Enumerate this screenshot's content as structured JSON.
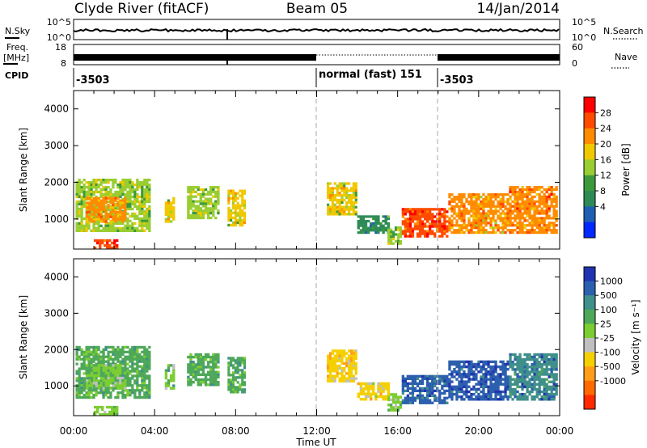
{
  "header": {
    "station": "Clyde River (fitACF)",
    "beam": "Beam 05",
    "date": "14/Jan/2014"
  },
  "top_panels": {
    "nsky_label": "N.Sky",
    "nsky_ticks": [
      "10^5",
      "10^0"
    ],
    "nsearch_ticks": [
      "10^5",
      "10^0"
    ],
    "nsearch_label": "N.Search",
    "freq_label_1": "Freq.",
    "freq_label_2": "[MHz]",
    "freq_ticks": [
      "18",
      "8"
    ],
    "nave_ticks": [
      "60",
      "0"
    ],
    "nave_label": "Nave",
    "cpid_label": "CPID",
    "cpid_segments": [
      "-3503",
      "normal (fast) 151",
      "-3503"
    ]
  },
  "colorbars": {
    "power": {
      "label": "Power [dB]",
      "ticks": [
        "28",
        "24",
        "20",
        "16",
        "12",
        "8",
        "4"
      ],
      "colors": [
        "#ff0000",
        "#ff4a00",
        "#ff8c00",
        "#f0c800",
        "#9acd32",
        "#3c9a3c",
        "#2e8b57",
        "#1e5fb4",
        "#0028ff"
      ]
    },
    "velocity": {
      "label": "Velocity [m s⁻¹]",
      "ticks": [
        "1000",
        "500",
        "100",
        "25",
        "-25",
        "-100",
        "-500",
        "-1000"
      ],
      "colors": [
        "#2033b0",
        "#2c5fae",
        "#3f8f8a",
        "#4fa85a",
        "#7ccd32",
        "#c0c0c0",
        "#f5d000",
        "#ff9d1a",
        "#ff6a00",
        "#ff2a00"
      ]
    }
  },
  "chart_data": [
    {
      "type": "heatmap",
      "title": "",
      "quantity": "Power",
      "xlabel": "",
      "ylabel": "Slant Range [km]",
      "xticks": [
        "00:00",
        "04:00",
        "08:00",
        "12:00",
        "16:00",
        "20:00",
        "00:00"
      ],
      "yticks": [
        "1000",
        "2000",
        "3000",
        "4000"
      ],
      "xlim_hours": [
        0,
        24
      ],
      "ylim_km": [
        180,
        4500
      ],
      "colorbar_range_db": [
        0,
        32
      ],
      "regions": [
        {
          "t0": 0.1,
          "t1": 3.8,
          "r0": 650,
          "r1": 2100,
          "level": 16
        },
        {
          "t0": 0.6,
          "t1": 2.6,
          "r0": 900,
          "r1": 1600,
          "level": 22
        },
        {
          "t0": 1.0,
          "t1": 2.2,
          "r0": 180,
          "r1": 450,
          "level": 28
        },
        {
          "t0": 4.5,
          "t1": 5.0,
          "r0": 900,
          "r1": 1600,
          "level": 18
        },
        {
          "t0": 5.6,
          "t1": 7.2,
          "r0": 1000,
          "r1": 1900,
          "level": 16
        },
        {
          "t0": 7.6,
          "t1": 8.5,
          "r0": 800,
          "r1": 1800,
          "level": 18
        },
        {
          "t0": 12.5,
          "t1": 14.0,
          "r0": 1100,
          "r1": 2000,
          "level": 18
        },
        {
          "t0": 14.0,
          "t1": 15.6,
          "r0": 600,
          "r1": 1100,
          "level": 10
        },
        {
          "t0": 15.5,
          "t1": 16.2,
          "r0": 300,
          "r1": 800,
          "level": 16
        },
        {
          "t0": 16.2,
          "t1": 18.5,
          "r0": 500,
          "r1": 1300,
          "level": 28
        },
        {
          "t0": 18.5,
          "t1": 21.5,
          "r0": 600,
          "r1": 1700,
          "level": 22
        },
        {
          "t0": 21.5,
          "t1": 23.9,
          "r0": 600,
          "r1": 1900,
          "level": 24
        }
      ]
    },
    {
      "type": "heatmap",
      "title": "",
      "quantity": "Velocity",
      "xlabel": "Time UT",
      "ylabel": "Slant Range [km]",
      "xticks": [
        "00:00",
        "04:00",
        "08:00",
        "12:00",
        "16:00",
        "20:00",
        "00:00"
      ],
      "yticks": [
        "1000",
        "2000",
        "3000",
        "4000"
      ],
      "xlim_hours": [
        0,
        24
      ],
      "ylim_km": [
        180,
        4500
      ],
      "colorbar_range_ms": [
        -1000,
        1000
      ],
      "regions": [
        {
          "t0": 0.1,
          "t1": 3.8,
          "r0": 650,
          "r1": 2100,
          "level": 300
        },
        {
          "t0": 0.6,
          "t1": 2.6,
          "r0": 900,
          "r1": 1600,
          "level": 150
        },
        {
          "t0": 1.0,
          "t1": 2.2,
          "r0": 180,
          "r1": 450,
          "level": 50
        },
        {
          "t0": 4.5,
          "t1": 5.0,
          "r0": 900,
          "r1": 1600,
          "level": 200
        },
        {
          "t0": 5.6,
          "t1": 7.2,
          "r0": 1000,
          "r1": 1900,
          "level": 250
        },
        {
          "t0": 7.6,
          "t1": 8.5,
          "r0": 800,
          "r1": 1800,
          "level": 250
        },
        {
          "t0": 12.5,
          "t1": 14.0,
          "r0": 1100,
          "r1": 2000,
          "level": -300
        },
        {
          "t0": 14.0,
          "t1": 15.6,
          "r0": 600,
          "r1": 1100,
          "level": -200
        },
        {
          "t0": 15.5,
          "t1": 16.2,
          "r0": 300,
          "r1": 800,
          "level": 50
        },
        {
          "t0": 16.2,
          "t1": 18.5,
          "r0": 500,
          "r1": 1300,
          "level": 700
        },
        {
          "t0": 18.5,
          "t1": 21.5,
          "r0": 600,
          "r1": 1700,
          "level": 800
        },
        {
          "t0": 21.5,
          "t1": 23.9,
          "r0": 600,
          "r1": 1900,
          "level": 600
        }
      ]
    }
  ]
}
